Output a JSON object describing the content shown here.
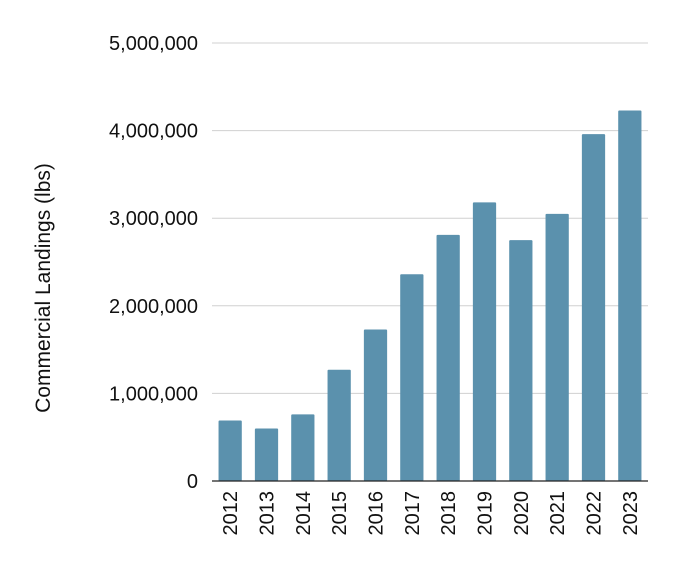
{
  "chart_data": {
    "type": "bar",
    "title": "",
    "xlabel": "",
    "ylabel": "Commercial Landings (lbs)",
    "categories": [
      "2012",
      "2013",
      "2014",
      "2015",
      "2016",
      "2017",
      "2018",
      "2019",
      "2020",
      "2021",
      "2022",
      "2023"
    ],
    "values": [
      690000,
      600000,
      760000,
      1270000,
      1730000,
      2360000,
      2810000,
      3180000,
      2750000,
      3050000,
      3960000,
      4230000
    ],
    "ylim": [
      0,
      5000000
    ],
    "yticks": [
      0,
      1000000,
      2000000,
      3000000,
      4000000,
      5000000
    ],
    "ytick_labels": [
      "0",
      "1,000,000",
      "2,000,000",
      "3,000,000",
      "4,000,000",
      "5,000,000"
    ],
    "grid": true,
    "bar_color": "#5b91ad"
  }
}
